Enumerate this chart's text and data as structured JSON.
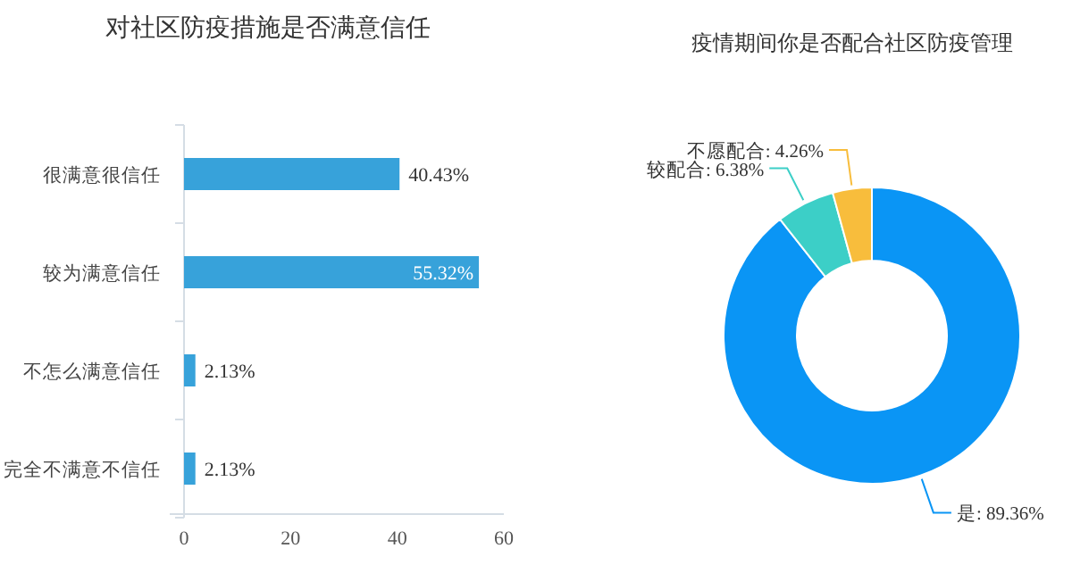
{
  "chart_data": [
    {
      "type": "bar",
      "orientation": "horizontal",
      "title": "对社区防疫措施是否满意信任",
      "categories": [
        "很满意很信任",
        "较为满意信任",
        "不怎么满意信任",
        "完全不满意不信任"
      ],
      "values": [
        40.43,
        55.32,
        2.13,
        2.13
      ],
      "value_labels": [
        "40.43%",
        "55.32%",
        "2.13%",
        "2.13%"
      ],
      "color": "#37a2da",
      "xlim": [
        0,
        60
      ],
      "xticks": [
        0,
        20,
        40,
        60
      ]
    },
    {
      "type": "donut",
      "title": "疫情期间你是否配合社区防疫管理",
      "categories": [
        "是",
        "较配合",
        "不愿配合"
      ],
      "values": [
        89.36,
        6.38,
        4.26
      ],
      "value_labels": [
        ": 89.36%",
        ": 6.38%",
        ": 4.26%"
      ],
      "colors": [
        "#0a95f5",
        "#3ccfc7",
        "#f8bd3c"
      ]
    }
  ]
}
